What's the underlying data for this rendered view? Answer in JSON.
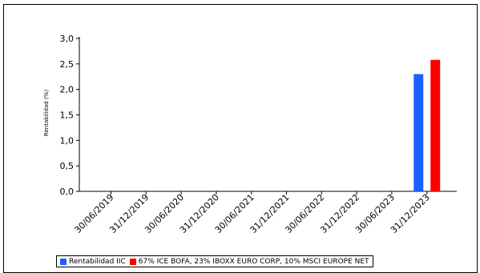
{
  "chart_data": {
    "type": "bar",
    "categories": [
      "30/06/2019",
      "31/12/2019",
      "30/06/2020",
      "31/12/2020",
      "30/06/2021",
      "31/12/2021",
      "30/06/2022",
      "31/12/2022",
      "30/06/2023",
      "31/12/2023"
    ],
    "series": [
      {
        "name": "Rentabilidad IIC",
        "color": "#1f5fff",
        "values": [
          null,
          null,
          null,
          null,
          null,
          null,
          null,
          null,
          null,
          2.3
        ]
      },
      {
        "name": "67% ICE BOFA, 23% IBOXX EURO CORP, 10%  MSCI EUROPE NET",
        "color": "#ff0000",
        "values": [
          null,
          null,
          null,
          null,
          null,
          null,
          null,
          null,
          null,
          2.58
        ]
      }
    ],
    "title": "",
    "xlabel": "",
    "ylabel": "Rentabilidad (%)",
    "ylim": [
      0,
      3.0
    ],
    "yticks": [
      "0,0",
      "0,5",
      "1,0",
      "1,5",
      "2,0",
      "2,5",
      "3,0"
    ],
    "grid": false,
    "legend_position": "bottom"
  }
}
